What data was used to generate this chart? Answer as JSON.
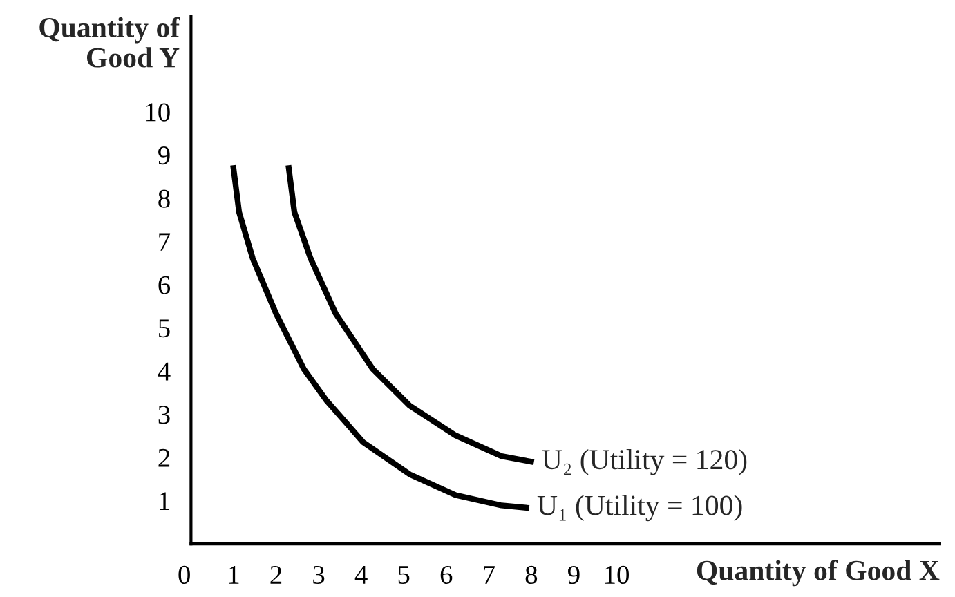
{
  "chart_data": {
    "type": "line",
    "xlabel": "Quantity of Good X",
    "ylabel": "Quantity of\nGood Y",
    "xlim": [
      0,
      17.6
    ],
    "ylim": [
      0,
      12.2
    ],
    "xticks": [
      0,
      1,
      2,
      3,
      4,
      5,
      6,
      7,
      8,
      9,
      10
    ],
    "yticks": [
      1,
      2,
      3,
      4,
      5,
      6,
      7,
      8,
      9,
      10
    ],
    "grid": false,
    "legend": false,
    "marker": "none",
    "line_style": "solid",
    "series": [
      {
        "color": "#000000",
        "x": [
          0.99,
          1.13,
          1.45,
          2.0,
          2.65,
          3.19,
          4.05,
          5.14,
          6.22,
          7.3,
          7.95
        ],
        "values": [
          8.76,
          7.68,
          6.61,
          5.33,
          4.05,
          3.31,
          2.35,
          1.61,
          1.13,
          0.89,
          0.83
        ]
      },
      {
        "color": "#000000",
        "x": [
          2.29,
          2.43,
          2.81,
          3.4,
          4.27,
          5.14,
          6.22,
          7.3,
          8.06
        ],
        "values": [
          8.76,
          7.68,
          6.61,
          5.33,
          4.05,
          3.2,
          2.51,
          2.03,
          1.89
        ]
      }
    ],
    "annotations": [
      {
        "text": "U₁ (Utility = 100)",
        "x": 7.95,
        "y": 0.83
      },
      {
        "text": "U₂ (Utility = 120)",
        "x": 8.06,
        "y": 1.89
      }
    ]
  }
}
